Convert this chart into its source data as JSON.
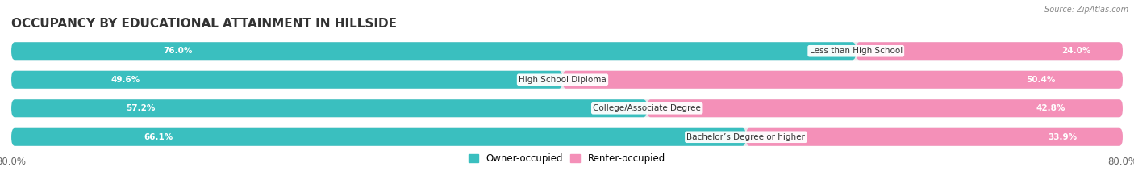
{
  "title": "OCCUPANCY BY EDUCATIONAL ATTAINMENT IN HILLSIDE",
  "source": "Source: ZipAtlas.com",
  "categories": [
    "Less than High School",
    "High School Diploma",
    "College/Associate Degree",
    "Bachelor’s Degree or higher"
  ],
  "owner_pct": [
    76.0,
    49.6,
    57.2,
    66.1
  ],
  "renter_pct": [
    24.0,
    50.4,
    42.8,
    33.9
  ],
  "owner_color": "#3abfbf",
  "renter_color": "#f490b8",
  "bg_bar_color": "#e8e8ec",
  "xlim_left": 0,
  "xlim_right": 100,
  "bar_height": 0.62,
  "bg_color": "#ffffff",
  "title_fontsize": 11,
  "label_fontsize": 7.5,
  "tick_fontsize": 8.5
}
